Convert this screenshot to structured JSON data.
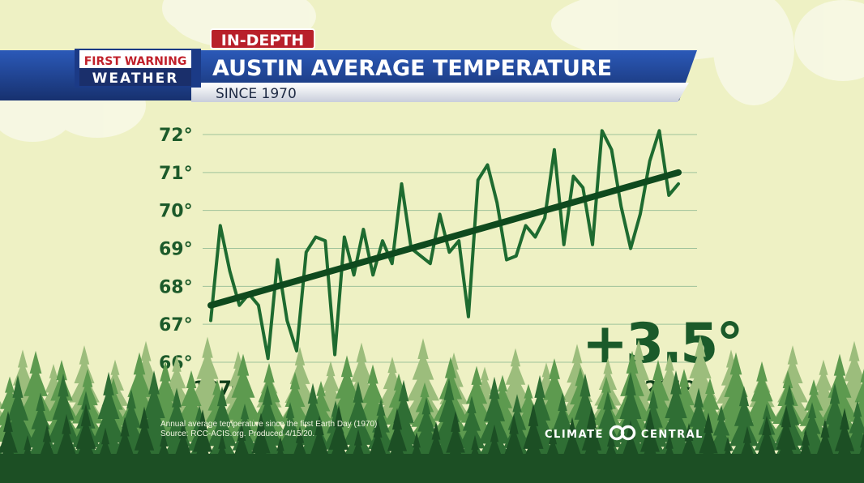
{
  "header": {
    "tag": "IN-DEPTH",
    "brand_top": "FIRST WARNING",
    "brand_bottom": "WEATHER",
    "title": "AUSTIN AVERAGE TEMPERATURE",
    "subtitle": "SINCE 1970"
  },
  "callout": "+3.5°",
  "footer": {
    "caption_line1": "Annual average temperature since the first Earth Day (1970)",
    "caption_line2": "Source: RCC-ACIS.org. Produced 4/15/20.",
    "logo_left": "CLIMATE",
    "logo_right": "CENTRAL"
  },
  "colors": {
    "background": "#eef1c4",
    "line": "#1e6b30",
    "trend": "#0f4a1e",
    "axis_text": "#1c5a2a",
    "banner_blue": "#1e3f8c",
    "tag_red": "#b8202a"
  },
  "chart_data": {
    "type": "line",
    "title": "AUSTIN AVERAGE TEMPERATURE",
    "subtitle": "SINCE 1970",
    "xlabel": "",
    "ylabel": "",
    "ylim": [
      66,
      72
    ],
    "yticks": [
      72,
      71,
      70,
      69,
      68,
      67,
      66
    ],
    "ytick_labels": [
      "72°",
      "71°",
      "70°",
      "69°",
      "68°",
      "67°",
      "66°"
    ],
    "xtick_labels": [
      "1970",
      "2019"
    ],
    "grid": true,
    "series": [
      {
        "x": [
          1970,
          1971,
          1972,
          1973,
          1974,
          1975,
          1976,
          1977,
          1978,
          1979,
          1980,
          1981,
          1982,
          1983,
          1984,
          1985,
          1986,
          1987,
          1988,
          1989,
          1990,
          1991,
          1992,
          1993,
          1994,
          1995,
          1996,
          1997,
          1998,
          1999,
          2000,
          2001,
          2002,
          2003,
          2004,
          2005,
          2006,
          2007,
          2008,
          2009,
          2010,
          2011,
          2012,
          2013,
          2014,
          2015,
          2016,
          2017,
          2018,
          2019
        ],
        "values": [
          67.1,
          69.6,
          68.4,
          67.5,
          67.8,
          67.5,
          66.1,
          68.7,
          67.1,
          66.3,
          68.9,
          69.3,
          69.2,
          66.2,
          69.3,
          68.3,
          69.5,
          68.3,
          69.2,
          68.6,
          70.7,
          69.0,
          68.8,
          68.6,
          69.9,
          68.9,
          69.2,
          67.2,
          70.8,
          71.2,
          70.2,
          68.7,
          68.8,
          69.6,
          69.3,
          69.8,
          71.6,
          69.1,
          70.9,
          70.6,
          69.1,
          72.1,
          71.6,
          70.1,
          69.0,
          69.9,
          71.3,
          72.1,
          70.4,
          70.7
        ]
      },
      {
        "name": "trend",
        "x": [
          1970,
          2019
        ],
        "values": [
          67.5,
          71.0
        ]
      }
    ]
  }
}
